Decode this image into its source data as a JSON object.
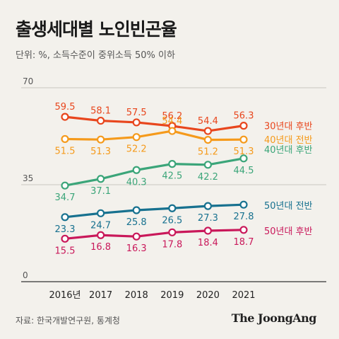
{
  "title": "출생세대별 노인빈곤율",
  "subtitle": "단위: %, 소득수준이 중위소득 50% 이하",
  "source": "자료: 한국개발연구원, 통계청",
  "brand": "The JoongAng",
  "chart_data": {
    "type": "line",
    "x": [
      "2016년",
      "2017",
      "2018",
      "2019",
      "2020",
      "2021"
    ],
    "yticks": [
      "0",
      "35",
      "70"
    ],
    "ylim": [
      0,
      70
    ],
    "series": [
      {
        "name": "30년대 후반",
        "color": "#e8461d",
        "values": [
          59.5,
          58.1,
          57.5,
          56.2,
          54.4,
          56.3
        ],
        "value_labels": [
          "59.5",
          "58.1",
          "57.5",
          "56.2",
          "54.4",
          "56.3"
        ]
      },
      {
        "name": "40년대 전반",
        "color": "#f59a1b",
        "values": [
          51.5,
          51.3,
          52.2,
          54.4,
          51.2,
          51.3
        ],
        "value_labels": [
          "51.5",
          "51.3",
          "52.2",
          "54.4",
          "51.2",
          "51.3"
        ]
      },
      {
        "name": "40년대 후반",
        "color": "#3ba579",
        "values": [
          34.7,
          37.1,
          40.3,
          42.5,
          42.2,
          44.5
        ],
        "value_labels": [
          "34.7",
          "37.1",
          "40.3",
          "42.5",
          "42.2",
          "44.5"
        ]
      },
      {
        "name": "50년대 전반",
        "color": "#17718f",
        "values": [
          23.3,
          24.7,
          25.8,
          26.5,
          27.3,
          27.8
        ],
        "value_labels": [
          "23.3",
          "24.7",
          "25.8",
          "26.5",
          "27.3",
          "27.8"
        ]
      },
      {
        "name": "50년대 후반",
        "color": "#c9185a",
        "values": [
          15.5,
          16.8,
          16.3,
          17.8,
          18.4,
          18.7
        ],
        "value_labels": [
          "15.5",
          "16.8",
          "16.3",
          "17.8",
          "18.4",
          "18.7"
        ]
      }
    ]
  }
}
